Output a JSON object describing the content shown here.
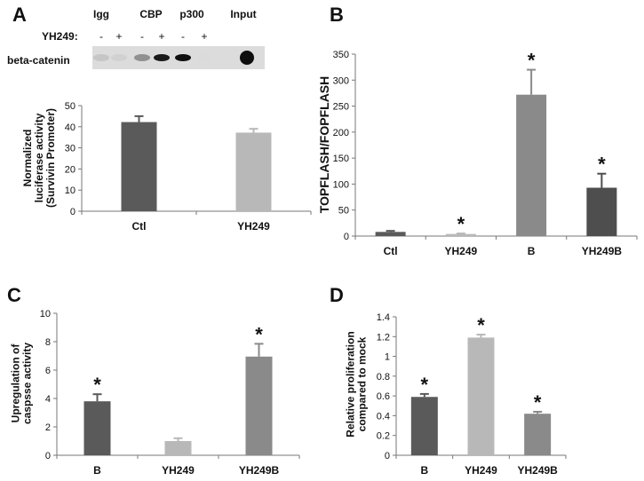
{
  "panel_labels": [
    "A",
    "B",
    "C",
    "D"
  ],
  "western_blot": {
    "lane_groups": [
      "Igg",
      "CBP",
      "p300",
      "Input"
    ],
    "treatment_label": "YH249:",
    "treatment_signs": [
      "-",
      "+",
      "-",
      "+",
      "-",
      "+"
    ],
    "row_label": "beta-catenin",
    "band_intensities": [
      0.15,
      0.1,
      0.4,
      0.95,
      1.0,
      0.05,
      0.0,
      1.0
    ]
  },
  "colors": {
    "dark": "#5a5a5a",
    "light": "#b8b8b8",
    "mid": "#8a8a8a",
    "darker": "#4e4e4e"
  },
  "chart_data": [
    {
      "type": "bar",
      "panel": "A",
      "categories": [
        "Ctl",
        "YH249"
      ],
      "values": [
        42.2,
        37.2
      ],
      "errors": [
        2.8,
        1.8
      ],
      "significant": [
        false,
        false
      ],
      "ylabel_lines": [
        "Normalized",
        "luciferase activity",
        "(Survivin Promoter)"
      ],
      "ylim": [
        0,
        50
      ],
      "yticks": [
        "0",
        "10",
        "20",
        "30",
        "40",
        "50"
      ]
    },
    {
      "type": "bar",
      "panel": "B",
      "categories": [
        "Ctl",
        "YH249",
        "B",
        "YH249B"
      ],
      "values": [
        8,
        4,
        272,
        93
      ],
      "errors": [
        2,
        1,
        48,
        27
      ],
      "significant": [
        false,
        true,
        true,
        true
      ],
      "ylabel_lines": [
        "TOPFLASH/FOPFLASH"
      ],
      "ylim": [
        0,
        350
      ],
      "yticks": [
        "0",
        "50",
        "100",
        "150",
        "200",
        "250",
        "300",
        "350"
      ]
    },
    {
      "type": "bar",
      "panel": "C",
      "categories": [
        "B",
        "YH249",
        "YH249B"
      ],
      "values": [
        3.8,
        1.0,
        6.95
      ],
      "errors": [
        0.5,
        0.2,
        0.9
      ],
      "significant": [
        true,
        false,
        true
      ],
      "ylabel_lines": [
        "Upregulation of",
        "caspsse activity"
      ],
      "ylim": [
        0,
        10
      ],
      "yticks": [
        "0",
        "2",
        "4",
        "6",
        "8",
        "10"
      ]
    },
    {
      "type": "bar",
      "panel": "D",
      "categories": [
        "B",
        "YH249",
        "YH249B"
      ],
      "values": [
        0.59,
        1.19,
        0.42
      ],
      "errors": [
        0.03,
        0.03,
        0.02
      ],
      "significant": [
        true,
        true,
        true
      ],
      "ylabel_lines": [
        "Relative proliferation",
        "compared to mock"
      ],
      "ylim": [
        0,
        1.4
      ],
      "yticks": [
        "0",
        "0.2",
        "0.4",
        "0.6",
        "0.8",
        "1",
        "1.2",
        "1.4"
      ]
    }
  ]
}
